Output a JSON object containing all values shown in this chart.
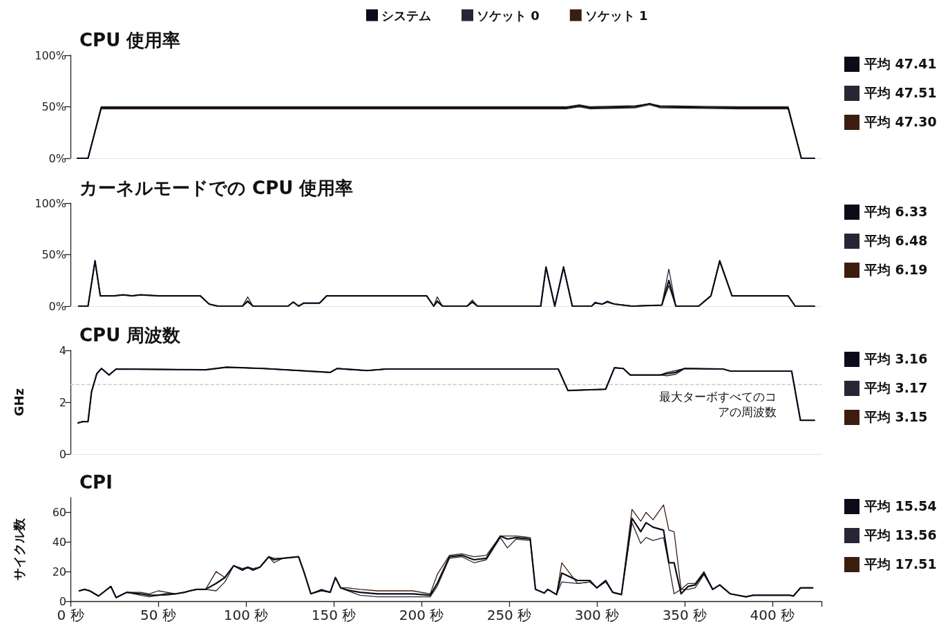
{
  "chart_data": [
    {
      "type": "line",
      "title": "CPU 使用率",
      "x": [
        4,
        10,
        17.5,
        40,
        80,
        120,
        160,
        200,
        240,
        283,
        290,
        296,
        322,
        330,
        336,
        380,
        409,
        416.5,
        424
      ],
      "series": [
        {
          "name": "システム",
          "color": "#0b0b1a",
          "values": [
            0,
            0,
            49,
            49,
            49,
            49,
            49,
            49,
            49,
            49,
            51,
            49,
            50,
            53,
            50,
            49,
            49,
            0,
            0
          ]
        },
        {
          "name": "ソケット 0",
          "color": "#262636",
          "values": [
            0,
            0,
            50,
            50,
            50,
            50,
            50,
            50,
            50,
            50,
            52,
            50,
            51,
            53,
            51,
            50,
            50,
            0,
            0
          ]
        },
        {
          "name": "ソケット 1",
          "color": "#3c1e0e",
          "values": [
            0,
            0,
            48,
            48,
            48,
            48,
            48,
            48,
            48,
            48,
            50,
            48,
            49,
            52,
            49,
            48,
            48,
            0,
            0
          ]
        }
      ],
      "xlim": [
        0,
        428
      ],
      "ylim": [
        0,
        100
      ],
      "yticks": [
        {
          "value": 0,
          "label": "0%"
        },
        {
          "value": 50,
          "label": "50%"
        },
        {
          "value": 100,
          "label": "100%"
        }
      ],
      "tick_labels": "y",
      "legend": "top",
      "annotations": [
        "平均 47.41",
        "平均 47.51",
        "平均 47.30"
      ]
    },
    {
      "type": "line",
      "title": "カーネルモードでの CPU 使用率",
      "x": [
        4.7,
        10,
        14,
        17,
        25,
        30,
        35,
        40,
        50,
        74,
        79,
        84,
        98,
        101,
        104,
        124,
        127,
        130,
        133,
        142,
        146,
        203,
        207,
        209,
        212,
        226,
        229,
        232,
        268,
        271,
        276,
        281,
        286,
        297,
        299,
        303,
        306,
        310,
        320,
        337,
        341,
        345,
        358,
        365,
        370,
        377,
        409,
        413,
        424
      ],
      "series": [
        {
          "color": "#0b0b1a",
          "values": [
            0,
            0,
            44,
            10,
            10,
            11,
            10,
            11,
            10,
            10,
            2,
            0,
            0,
            5,
            0,
            0,
            4,
            0,
            3,
            3,
            10,
            10,
            0,
            5,
            0,
            0,
            4,
            0,
            0,
            38,
            0,
            38,
            0,
            0,
            3,
            2,
            4,
            2,
            0,
            1,
            25,
            0,
            0,
            10,
            44,
            10,
            10,
            0,
            0
          ]
        },
        {
          "color": "#262636",
          "values": [
            0,
            0,
            44,
            10,
            10,
            11,
            10,
            11,
            10,
            10,
            2,
            0,
            0,
            9,
            0,
            0,
            4,
            0,
            3,
            3,
            10,
            10,
            0,
            9,
            0,
            0,
            6,
            0,
            0,
            38,
            0,
            38,
            0,
            0,
            4,
            2,
            5,
            2,
            0,
            1,
            36,
            0,
            0,
            10,
            44,
            10,
            10,
            0,
            0
          ]
        },
        {
          "color": "#3c1e0e",
          "values": [
            0,
            0,
            43,
            10,
            10,
            11,
            10,
            11,
            10,
            10,
            2,
            0,
            0,
            4,
            0,
            0,
            4,
            0,
            3,
            3,
            10,
            10,
            0,
            4,
            0,
            0,
            4,
            0,
            0,
            37,
            0,
            37,
            0,
            0,
            3,
            2,
            4,
            2,
            0,
            1,
            20,
            0,
            0,
            10,
            43,
            10,
            10,
            0,
            0
          ]
        }
      ],
      "xlim": [
        0,
        428
      ],
      "ylim": [
        0,
        100
      ],
      "yticks": [
        {
          "value": 0,
          "label": "0%"
        },
        {
          "value": 50,
          "label": "50%"
        },
        {
          "value": 100,
          "label": "100%"
        }
      ],
      "tick_labels": "y",
      "annotations": [
        "平均 6.33",
        "平均 6.48",
        "平均 6.19"
      ]
    },
    {
      "type": "line",
      "title": "CPU 周波数",
      "ylabel": "GHz",
      "x": [
        4.3,
        7,
        10,
        12,
        15,
        17.7,
        22,
        26,
        77,
        89,
        110,
        148,
        152,
        169,
        180,
        278,
        283.5,
        305,
        310,
        315,
        319,
        336,
        340,
        345,
        350,
        372,
        376,
        411,
        416,
        424
      ],
      "series": [
        {
          "color": "#0b0b1a",
          "values": [
            1.2,
            1.25,
            1.25,
            2.4,
            3.1,
            3.3,
            3.05,
            3.28,
            3.25,
            3.35,
            3.3,
            3.15,
            3.3,
            3.22,
            3.28,
            3.28,
            2.45,
            2.5,
            3.33,
            3.3,
            3.05,
            3.05,
            3.1,
            3.15,
            3.3,
            3.28,
            3.2,
            3.2,
            1.3,
            1.3
          ]
        },
        {
          "color": "#262636",
          "values": [
            1.2,
            1.25,
            1.25,
            2.4,
            3.1,
            3.3,
            3.05,
            3.28,
            3.25,
            3.35,
            3.3,
            3.15,
            3.3,
            3.22,
            3.28,
            3.28,
            2.45,
            2.5,
            3.33,
            3.3,
            3.05,
            3.05,
            3.15,
            3.22,
            3.3,
            3.28,
            3.2,
            3.2,
            1.3,
            1.3
          ]
        },
        {
          "color": "#3c1e0e",
          "values": [
            1.2,
            1.25,
            1.25,
            2.4,
            3.1,
            3.3,
            3.05,
            3.28,
            3.25,
            3.35,
            3.3,
            3.15,
            3.3,
            3.22,
            3.28,
            3.28,
            2.45,
            2.5,
            3.33,
            3.3,
            3.05,
            3.05,
            3.02,
            3.08,
            3.3,
            3.28,
            3.2,
            3.2,
            1.3,
            1.3
          ]
        }
      ],
      "ref_lines": [
        {
          "axis": "y",
          "value": 2.7,
          "label": "最大ターボすべてのコアの周波数",
          "color": "#c8c8c8",
          "line_style": "dashed"
        }
      ],
      "xlim": [
        0,
        428
      ],
      "ylim": [
        0,
        4
      ],
      "yticks": [
        0,
        2,
        4
      ],
      "tick_labels": "y",
      "annotations": [
        "平均 3.16",
        "平均 3.17",
        "平均 3.15"
      ]
    },
    {
      "type": "line",
      "title": "CPI",
      "ylabel": "サイクル数",
      "x": [
        5,
        8,
        11,
        16,
        23,
        26,
        32,
        40,
        45,
        50,
        55,
        60,
        65,
        68,
        72,
        77,
        83,
        88,
        93,
        98,
        101,
        104,
        108,
        113,
        116,
        121,
        130,
        133,
        137,
        143,
        148,
        151,
        154,
        158,
        165,
        175,
        185,
        195,
        205,
        209,
        216,
        223,
        230,
        237,
        245,
        249,
        254,
        262,
        265,
        270,
        272,
        277,
        280,
        289,
        296,
        300,
        305,
        309,
        314,
        320,
        325,
        328,
        332,
        338,
        341,
        344,
        348,
        352,
        356,
        361,
        366,
        370,
        376,
        385,
        389,
        398,
        410,
        412,
        416,
        423
      ],
      "series": [
        {
          "color": "#0b0b1a",
          "values": [
            7,
            8,
            7,
            3.5,
            10,
            2.5,
            6,
            5,
            4,
            4,
            5,
            5,
            6,
            7,
            8,
            8,
            12,
            16,
            24,
            21,
            23,
            21,
            23,
            30,
            28,
            29,
            30,
            20,
            5,
            7.5,
            6,
            16,
            9,
            7.5,
            6,
            5,
            5,
            5,
            4,
            12,
            30,
            31,
            28,
            29,
            44,
            42,
            43,
            42,
            8,
            5.5,
            8,
            4.5,
            19,
            14,
            14,
            9,
            14,
            6,
            4.5,
            56,
            47,
            53,
            50,
            48,
            26,
            26,
            5,
            10,
            11,
            19,
            8,
            11,
            5,
            3,
            4,
            4,
            4,
            3.5,
            9,
            9
          ]
        },
        {
          "color": "#262636",
          "values": [
            7,
            8,
            7,
            3.5,
            10,
            2.5,
            6,
            4,
            3,
            4,
            4,
            5,
            6,
            7,
            8,
            8,
            7,
            13,
            24,
            22,
            23,
            22,
            23,
            30,
            26,
            29,
            30,
            20,
            5,
            7,
            6,
            16,
            9,
            7,
            4,
            3,
            3,
            3,
            3,
            10,
            29,
            30,
            26,
            28,
            43,
            36,
            42,
            41,
            8,
            5.5,
            8,
            4.5,
            13,
            12,
            13,
            9,
            13,
            6,
            4.5,
            53,
            39,
            43,
            41,
            43,
            25,
            5,
            8,
            8,
            9,
            18,
            8,
            11,
            5,
            3,
            4,
            4,
            4,
            3.5,
            9,
            9
          ]
        },
        {
          "color": "#3c1e0e",
          "values": [
            7,
            8,
            7,
            3.5,
            10,
            2.5,
            6,
            6,
            5,
            7,
            6,
            5,
            6,
            7,
            8,
            8,
            20,
            16,
            24,
            22,
            23,
            22,
            23,
            30,
            29,
            29,
            30,
            20,
            5,
            8,
            6,
            16,
            9,
            9,
            8,
            7,
            7,
            7,
            5,
            18,
            31,
            32,
            30,
            31,
            44,
            44,
            44,
            43,
            8,
            5.5,
            8,
            4.5,
            26,
            12,
            13,
            9,
            14,
            6,
            4.5,
            62,
            54,
            60,
            55,
            65,
            48,
            47,
            8,
            12,
            12,
            20,
            8,
            11,
            5,
            3,
            4,
            4,
            4,
            3.5,
            9,
            9
          ]
        }
      ],
      "xlim": [
        0,
        428
      ],
      "xticks": [
        {
          "value": 0,
          "label": "0 秒"
        },
        {
          "value": 50,
          "label": "50 秒"
        },
        {
          "value": 100,
          "label": "100 秒"
        },
        {
          "value": 150,
          "label": "150 秒"
        },
        {
          "value": 200,
          "label": "200 秒"
        },
        {
          "value": 250,
          "label": "250 秒"
        },
        {
          "value": 300,
          "label": "300 秒"
        },
        {
          "value": 350,
          "label": "350 秒"
        },
        {
          "value": 400,
          "label": "400 秒"
        },
        {
          "value": 428,
          "label": null
        }
      ],
      "ylim": [
        0,
        70
      ],
      "yticks": [
        0,
        20,
        40,
        60
      ],
      "annotations": [
        "平均 15.54",
        "平均 13.56",
        "平均 17.51"
      ]
    }
  ]
}
